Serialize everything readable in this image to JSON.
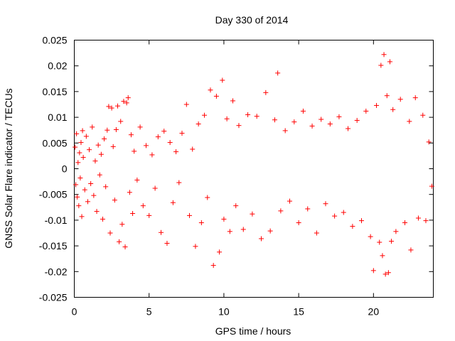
{
  "chart_data": {
    "type": "scatter",
    "title": "Day 330 of 2014",
    "xlabel": "GPS time / hours",
    "ylabel": "GNSS Solar Flare indicator / TECUs",
    "xlim": [
      0,
      24
    ],
    "ylim": [
      -0.025,
      0.025
    ],
    "x_ticks": [
      0,
      5,
      10,
      15,
      20
    ],
    "x_tick_labels": [
      "0",
      "5",
      "10",
      "15",
      "20"
    ],
    "y_ticks": [
      -0.025,
      -0.02,
      -0.015,
      -0.01,
      -0.005,
      0,
      0.005,
      0.01,
      0.015,
      0.02,
      0.025
    ],
    "y_tick_labels": [
      "-0.025",
      "-0.02",
      "-0.015",
      "-0.01",
      "-0.005",
      "0",
      "0.005",
      "0.01",
      "0.015",
      "0.02",
      "0.025"
    ],
    "grid": false,
    "legend": "none",
    "marker": "plus",
    "color": "#ff0000",
    "series": [
      {
        "points": [
          [
            0.05,
            0.0042
          ],
          [
            0.1,
            -0.0031
          ],
          [
            0.15,
            0.0068
          ],
          [
            0.2,
            -0.0055
          ],
          [
            0.25,
            0.0012
          ],
          [
            0.3,
            -0.0072
          ],
          [
            0.35,
            0.0031
          ],
          [
            0.4,
            -0.0018
          ],
          [
            0.45,
            0.0051
          ],
          [
            0.5,
            -0.0093
          ],
          [
            0.55,
            0.0074
          ],
          [
            0.6,
            0.0022
          ],
          [
            0.7,
            -0.0041
          ],
          [
            0.8,
            0.0063
          ],
          [
            0.9,
            -0.0064
          ],
          [
            1.0,
            0.0037
          ],
          [
            1.1,
            -0.0029
          ],
          [
            1.2,
            0.0081
          ],
          [
            1.3,
            -0.0052
          ],
          [
            1.4,
            0.0015
          ],
          [
            1.5,
            -0.0083
          ],
          [
            1.6,
            0.0046
          ],
          [
            1.7,
            -0.0012
          ],
          [
            1.8,
            0.0028
          ],
          [
            1.9,
            -0.0098
          ],
          [
            2.0,
            0.0058
          ],
          [
            2.1,
            -0.0035
          ],
          [
            2.2,
            0.0075
          ],
          [
            2.3,
            0.0121
          ],
          [
            2.4,
            -0.0125
          ],
          [
            2.5,
            0.0118
          ],
          [
            2.6,
            0.0043
          ],
          [
            2.7,
            -0.0061
          ],
          [
            2.8,
            0.0076
          ],
          [
            2.9,
            0.0122
          ],
          [
            3.0,
            -0.0142
          ],
          [
            3.1,
            0.0092
          ],
          [
            3.2,
            -0.0108
          ],
          [
            3.3,
            0.0131
          ],
          [
            3.4,
            -0.0152
          ],
          [
            3.5,
            0.0128
          ],
          [
            3.6,
            0.0138
          ],
          [
            3.7,
            -0.0046
          ],
          [
            3.8,
            0.0066
          ],
          [
            3.9,
            -0.0087
          ],
          [
            4.0,
            0.0034
          ],
          [
            4.2,
            -0.0022
          ],
          [
            4.4,
            0.0081
          ],
          [
            4.6,
            -0.0072
          ],
          [
            4.8,
            0.0045
          ],
          [
            5.0,
            -0.0091
          ],
          [
            5.2,
            0.0027
          ],
          [
            5.4,
            -0.0038
          ],
          [
            5.6,
            0.0062
          ],
          [
            5.8,
            -0.0124
          ],
          [
            6.0,
            0.0073
          ],
          [
            6.2,
            -0.0145
          ],
          [
            6.4,
            0.0051
          ],
          [
            6.6,
            -0.0066
          ],
          [
            6.8,
            0.0033
          ],
          [
            7.0,
            -0.0027
          ],
          [
            7.2,
            0.0069
          ],
          [
            7.5,
            0.0125
          ],
          [
            7.7,
            -0.0091
          ],
          [
            7.9,
            0.0038
          ],
          [
            8.1,
            -0.0151
          ],
          [
            8.3,
            0.0087
          ],
          [
            8.5,
            -0.0105
          ],
          [
            8.7,
            0.0104
          ],
          [
            8.9,
            -0.0056
          ],
          [
            9.1,
            0.0153
          ],
          [
            9.3,
            -0.0188
          ],
          [
            9.5,
            0.0141
          ],
          [
            9.7,
            -0.0162
          ],
          [
            9.9,
            0.0172
          ],
          [
            10.0,
            -0.0098
          ],
          [
            10.2,
            0.0097
          ],
          [
            10.4,
            -0.0122
          ],
          [
            10.6,
            0.0132
          ],
          [
            10.8,
            -0.0072
          ],
          [
            11.0,
            0.0084
          ],
          [
            11.3,
            -0.0118
          ],
          [
            11.6,
            0.0105
          ],
          [
            11.9,
            -0.0088
          ],
          [
            12.2,
            0.0102
          ],
          [
            12.5,
            -0.0136
          ],
          [
            12.8,
            0.0148
          ],
          [
            13.1,
            -0.0121
          ],
          [
            13.4,
            0.0095
          ],
          [
            13.6,
            0.0186
          ],
          [
            13.8,
            -0.0082
          ],
          [
            14.1,
            0.0074
          ],
          [
            14.4,
            -0.0063
          ],
          [
            14.7,
            0.0091
          ],
          [
            15.0,
            -0.0105
          ],
          [
            15.3,
            0.0112
          ],
          [
            15.6,
            -0.0078
          ],
          [
            15.9,
            0.0083
          ],
          [
            16.2,
            -0.0125
          ],
          [
            16.5,
            0.0096
          ],
          [
            16.8,
            -0.0068
          ],
          [
            17.1,
            0.0087
          ],
          [
            17.4,
            -0.0092
          ],
          [
            17.7,
            0.0101
          ],
          [
            18.0,
            -0.0085
          ],
          [
            18.3,
            0.0078
          ],
          [
            18.6,
            -0.0112
          ],
          [
            18.9,
            0.0094
          ],
          [
            19.2,
            -0.0101
          ],
          [
            19.5,
            0.0112
          ],
          [
            19.8,
            -0.0132
          ],
          [
            20.0,
            -0.0198
          ],
          [
            20.2,
            0.0123
          ],
          [
            20.4,
            -0.0143
          ],
          [
            20.5,
            0.0201
          ],
          [
            20.6,
            -0.0169
          ],
          [
            20.7,
            0.0222
          ],
          [
            20.8,
            -0.0205
          ],
          [
            20.9,
            0.0142
          ],
          [
            21.0,
            -0.0202
          ],
          [
            21.1,
            0.0208
          ],
          [
            21.2,
            -0.0141
          ],
          [
            21.3,
            0.0115
          ],
          [
            21.5,
            -0.0122
          ],
          [
            21.8,
            0.0135
          ],
          [
            22.1,
            -0.0105
          ],
          [
            22.4,
            0.0092
          ],
          [
            22.5,
            -0.0158
          ],
          [
            22.8,
            0.0138
          ],
          [
            23.0,
            -0.0096
          ],
          [
            23.3,
            0.0104
          ],
          [
            23.5,
            -0.0101
          ],
          [
            23.7,
            0.0052
          ],
          [
            23.9,
            -0.0034
          ]
        ]
      }
    ]
  }
}
